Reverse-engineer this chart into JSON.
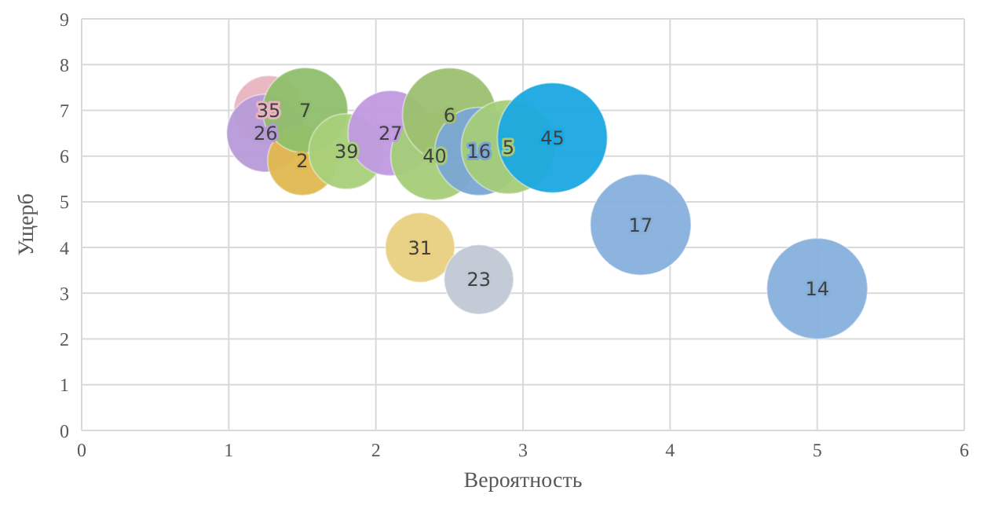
{
  "chart_data": {
    "type": "bubble",
    "xlabel": "Вероятность",
    "ylabel": "Ущерб",
    "series": [
      {
        "name": "35",
        "color": "#e8b4c0",
        "x": [
          1.27
        ],
        "values": [
          7.0
        ],
        "sizes": [
          0.4
        ]
      },
      {
        "name": "26",
        "color": "#b79ad8",
        "x": [
          1.25
        ],
        "values": [
          6.5
        ],
        "sizes": [
          0.5
        ]
      },
      {
        "name": "2",
        "color": "#e0b850",
        "x": [
          1.5
        ],
        "values": [
          5.9
        ],
        "sizes": [
          0.4
        ]
      },
      {
        "name": "7",
        "color": "#8fbf6a",
        "x": [
          1.52
        ],
        "values": [
          7.0
        ],
        "sizes": [
          0.6
        ]
      },
      {
        "name": "39",
        "color": "#a8d07a",
        "x": [
          1.8
        ],
        "values": [
          6.1
        ],
        "sizes": [
          0.47
        ]
      },
      {
        "name": "27",
        "color": "#c09ae0",
        "x": [
          2.1
        ],
        "values": [
          6.5
        ],
        "sizes": [
          0.6
        ]
      },
      {
        "name": "40",
        "color": "#a4cc78",
        "x": [
          2.4
        ],
        "values": [
          6.0
        ],
        "sizes": [
          0.64
        ]
      },
      {
        "name": "6",
        "color": "#9cc070",
        "x": [
          2.5
        ],
        "values": [
          6.9
        ],
        "sizes": [
          0.73
        ]
      },
      {
        "name": "16",
        "color": "#7aa6d4",
        "x": [
          2.7
        ],
        "values": [
          6.1
        ],
        "sizes": [
          0.64
        ]
      },
      {
        "name": "5",
        "color": "#a4cc78",
        "x": [
          2.9
        ],
        "values": [
          6.2
        ],
        "sizes": [
          0.73
        ]
      },
      {
        "name": "45",
        "color": "#1aa8e0",
        "x": [
          3.2
        ],
        "values": [
          6.4
        ],
        "sizes": [
          1
        ]
      },
      {
        "name": "31",
        "color": "#e8d080",
        "x": [
          2.3
        ],
        "values": [
          4.0
        ],
        "sizes": [
          0.4
        ]
      },
      {
        "name": "23",
        "color": "#c0c8d4",
        "x": [
          2.7
        ],
        "values": [
          3.3
        ],
        "sizes": [
          0.4
        ]
      },
      {
        "name": "17",
        "color": "#86b0dc",
        "x": [
          3.8
        ],
        "values": [
          4.5
        ],
        "sizes": [
          0.84
        ]
      },
      {
        "name": "14",
        "color": "#86b0dc",
        "x": [
          5.0
        ],
        "values": [
          3.1
        ],
        "sizes": [
          0.84
        ]
      }
    ],
    "xlim": [
      0,
      6
    ],
    "xticks": [
      0,
      1,
      2,
      3,
      4,
      5,
      6
    ],
    "ylim": [
      0,
      9
    ],
    "yticks": [
      0,
      1,
      2,
      3,
      4,
      5,
      6,
      7,
      8,
      9
    ],
    "grid": true,
    "legend": false
  }
}
